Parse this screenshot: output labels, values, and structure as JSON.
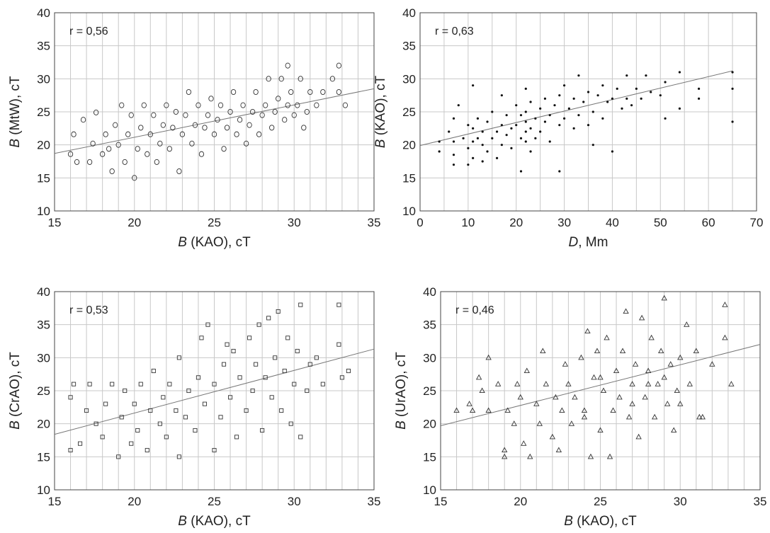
{
  "figure": {
    "background": "#ffffff",
    "grid_color": "#c8c8c8",
    "frame_color": "#444444",
    "marker_color": "#333333",
    "fit_line_color": "#777777"
  },
  "chart_data": [
    {
      "type": "scatter",
      "r_label": "r = 0,56",
      "xlabel": {
        "var": "B",
        "rest": " (KAO), cT"
      },
      "ylabel": {
        "var": "B",
        "rest": " (MtW), cT"
      },
      "xlim": [
        15,
        35
      ],
      "ylim": [
        10,
        40
      ],
      "xticks": [
        15,
        20,
        25,
        30,
        35
      ],
      "yticks": [
        10,
        15,
        20,
        25,
        30,
        35,
        40
      ],
      "grid": true,
      "marker": "circle",
      "fit_line": [
        [
          15,
          18.7
        ],
        [
          35,
          28.5
        ]
      ],
      "points_description": "dense cloud",
      "points": [
        [
          16.0,
          18.6
        ],
        [
          16.2,
          21.6
        ],
        [
          16.4,
          17.4
        ],
        [
          16.8,
          23.8
        ],
        [
          17.2,
          17.4
        ],
        [
          17.4,
          20.2
        ],
        [
          17.6,
          24.9
        ],
        [
          18.0,
          18.6
        ],
        [
          18.2,
          21.6
        ],
        [
          18.4,
          19.4
        ],
        [
          18.6,
          16.0
        ],
        [
          18.8,
          23.0
        ],
        [
          19.0,
          20.0
        ],
        [
          19.2,
          26.0
        ],
        [
          19.4,
          17.4
        ],
        [
          19.6,
          21.6
        ],
        [
          19.8,
          24.5
        ],
        [
          20.0,
          15.0
        ],
        [
          20.2,
          19.4
        ],
        [
          20.4,
          22.6
        ],
        [
          20.6,
          26.0
        ],
        [
          20.8,
          18.6
        ],
        [
          21.0,
          21.6
        ],
        [
          21.2,
          24.5
        ],
        [
          21.4,
          17.4
        ],
        [
          21.6,
          20.2
        ],
        [
          21.8,
          23.0
        ],
        [
          22.0,
          26.0
        ],
        [
          22.2,
          19.4
        ],
        [
          22.4,
          22.6
        ],
        [
          22.6,
          25.0
        ],
        [
          22.8,
          16.0
        ],
        [
          23.0,
          21.6
        ],
        [
          23.2,
          24.5
        ],
        [
          23.4,
          28.0
        ],
        [
          23.6,
          20.2
        ],
        [
          23.8,
          23.0
        ],
        [
          24.0,
          26.0
        ],
        [
          24.2,
          18.6
        ],
        [
          24.4,
          22.6
        ],
        [
          24.6,
          24.5
        ],
        [
          24.8,
          27.0
        ],
        [
          25.0,
          21.6
        ],
        [
          25.2,
          23.8
        ],
        [
          25.4,
          26.0
        ],
        [
          25.6,
          19.4
        ],
        [
          25.8,
          22.6
        ],
        [
          26.0,
          25.0
        ],
        [
          26.2,
          28.0
        ],
        [
          26.4,
          21.6
        ],
        [
          26.6,
          23.8
        ],
        [
          26.8,
          26.0
        ],
        [
          27.0,
          20.2
        ],
        [
          27.2,
          23.0
        ],
        [
          27.4,
          25.0
        ],
        [
          27.6,
          28.0
        ],
        [
          27.8,
          21.6
        ],
        [
          28.0,
          24.5
        ],
        [
          28.2,
          26.0
        ],
        [
          28.4,
          30.0
        ],
        [
          28.6,
          22.6
        ],
        [
          28.8,
          25.0
        ],
        [
          29.0,
          27.0
        ],
        [
          29.2,
          30.0
        ],
        [
          29.4,
          23.8
        ],
        [
          29.6,
          26.0
        ],
        [
          29.8,
          28.0
        ],
        [
          30.0,
          24.5
        ],
        [
          30.2,
          26.0
        ],
        [
          30.4,
          30.0
        ],
        [
          30.6,
          22.6
        ],
        [
          30.8,
          25.0
        ],
        [
          31.0,
          28.0
        ],
        [
          31.4,
          26.0
        ],
        [
          31.8,
          28.0
        ],
        [
          32.4,
          30.0
        ],
        [
          32.8,
          32.0
        ],
        [
          32.8,
          28.0
        ],
        [
          33.2,
          26.0
        ],
        [
          29.6,
          32.0
        ]
      ]
    },
    {
      "type": "scatter",
      "r_label": "r = 0,63",
      "xlabel": {
        "var": "D",
        "rest": ", Mm"
      },
      "ylabel": {
        "var": "B",
        "rest": " (KAO), cT"
      },
      "xlim": [
        0,
        70
      ],
      "ylim": [
        10,
        40
      ],
      "xticks": [
        0,
        10,
        20,
        30,
        40,
        50,
        60,
        70
      ],
      "yticks": [
        10,
        15,
        20,
        25,
        30,
        35,
        40
      ],
      "grid": true,
      "marker": "dot",
      "fit_line": [
        [
          0,
          19.9
        ],
        [
          65,
          31.2
        ]
      ],
      "points": [
        [
          4,
          19.0
        ],
        [
          4,
          20.5
        ],
        [
          6,
          22.0
        ],
        [
          7,
          17.0
        ],
        [
          7,
          18.5
        ],
        [
          7,
          20.5
        ],
        [
          7,
          24.0
        ],
        [
          8,
          26.0
        ],
        [
          9,
          21.0
        ],
        [
          10,
          17.0
        ],
        [
          10,
          19.5
        ],
        [
          10,
          23.0
        ],
        [
          11,
          18.0
        ],
        [
          11,
          20.5
        ],
        [
          11,
          22.5
        ],
        [
          11,
          29.0
        ],
        [
          12,
          21.0
        ],
        [
          12,
          24.0
        ],
        [
          13,
          17.5
        ],
        [
          13,
          20.0
        ],
        [
          13,
          22.0
        ],
        [
          14,
          19.0
        ],
        [
          14,
          23.5
        ],
        [
          15,
          21.0
        ],
        [
          15,
          25.0
        ],
        [
          16,
          18.0
        ],
        [
          16,
          22.0
        ],
        [
          17,
          20.0
        ],
        [
          17,
          23.0
        ],
        [
          17,
          27.5
        ],
        [
          18,
          21.5
        ],
        [
          18,
          24.5
        ],
        [
          19,
          19.5
        ],
        [
          19,
          22.5
        ],
        [
          20,
          23.0
        ],
        [
          20,
          26.0
        ],
        [
          21,
          16.0
        ],
        [
          21,
          21.0
        ],
        [
          21,
          24.5
        ],
        [
          22,
          20.5
        ],
        [
          22,
          22.0
        ],
        [
          22,
          23.5
        ],
        [
          22,
          25.0
        ],
        [
          22,
          28.5
        ],
        [
          23,
          19.0
        ],
        [
          23,
          22.5
        ],
        [
          23,
          26.5
        ],
        [
          24,
          21.0
        ],
        [
          24,
          24.0
        ],
        [
          25,
          22.0
        ],
        [
          25,
          25.5
        ],
        [
          26,
          23.5
        ],
        [
          26,
          27.0
        ],
        [
          27,
          20.5
        ],
        [
          27,
          24.5
        ],
        [
          28,
          26.0
        ],
        [
          29,
          23.0
        ],
        [
          29,
          27.5
        ],
        [
          29,
          16.0
        ],
        [
          30,
          24.0
        ],
        [
          30,
          29.0
        ],
        [
          31,
          25.5
        ],
        [
          32,
          22.5
        ],
        [
          32,
          27.0
        ],
        [
          33,
          24.5
        ],
        [
          33,
          30.5
        ],
        [
          34,
          26.5
        ],
        [
          35,
          23.0
        ],
        [
          35,
          28.0
        ],
        [
          36,
          25.0
        ],
        [
          36,
          20.0
        ],
        [
          37,
          27.5
        ],
        [
          38,
          24.0
        ],
        [
          38,
          29.0
        ],
        [
          39,
          26.5
        ],
        [
          40,
          19.0
        ],
        [
          40,
          27.0
        ],
        [
          41,
          28.5
        ],
        [
          42,
          25.5
        ],
        [
          43,
          30.5
        ],
        [
          43,
          27.0
        ],
        [
          44,
          26.0
        ],
        [
          45,
          28.5
        ],
        [
          46,
          27.0
        ],
        [
          47,
          30.5
        ],
        [
          48,
          28.0
        ],
        [
          50,
          27.5
        ],
        [
          51,
          24.0
        ],
        [
          51,
          29.5
        ],
        [
          54,
          25.5
        ],
        [
          54,
          31.0
        ],
        [
          58,
          27.0
        ],
        [
          58,
          28.5
        ],
        [
          65,
          23.5
        ],
        [
          65,
          28.5
        ],
        [
          65,
          31.0
        ]
      ]
    },
    {
      "type": "scatter",
      "r_label": "r = 0,53",
      "xlabel": {
        "var": "B",
        "rest": " (KAO), cT"
      },
      "ylabel": {
        "var": "B",
        "rest": " (CrAO), cT"
      },
      "xlim": [
        15,
        35
      ],
      "ylim": [
        10,
        40
      ],
      "xticks": [
        15,
        20,
        25,
        30,
        35
      ],
      "yticks": [
        10,
        15,
        20,
        25,
        30,
        35,
        40
      ],
      "grid": true,
      "marker": "square",
      "fit_line": [
        [
          15,
          18.4
        ],
        [
          35,
          31.3
        ]
      ],
      "points": [
        [
          16.0,
          16.0
        ],
        [
          16.0,
          24.0
        ],
        [
          16.2,
          26.0
        ],
        [
          16.6,
          17.0
        ],
        [
          17.0,
          22.0
        ],
        [
          17.2,
          26.0
        ],
        [
          17.6,
          20.0
        ],
        [
          18.0,
          18.0
        ],
        [
          18.2,
          23.0
        ],
        [
          18.6,
          26.0
        ],
        [
          19.0,
          15.0
        ],
        [
          19.2,
          21.0
        ],
        [
          19.4,
          25.0
        ],
        [
          19.8,
          17.0
        ],
        [
          20.0,
          23.0
        ],
        [
          20.2,
          19.0
        ],
        [
          20.4,
          26.0
        ],
        [
          20.8,
          16.0
        ],
        [
          21.0,
          22.0
        ],
        [
          21.2,
          28.0
        ],
        [
          21.6,
          20.0
        ],
        [
          21.8,
          24.0
        ],
        [
          22.0,
          18.0
        ],
        [
          22.2,
          26.0
        ],
        [
          22.6,
          22.0
        ],
        [
          22.8,
          15.0
        ],
        [
          22.8,
          30.0
        ],
        [
          23.2,
          21.0
        ],
        [
          23.4,
          25.0
        ],
        [
          23.8,
          19.0
        ],
        [
          24.0,
          27.0
        ],
        [
          24.2,
          33.0
        ],
        [
          24.4,
          23.0
        ],
        [
          24.6,
          35.0
        ],
        [
          25.0,
          16.0
        ],
        [
          25.0,
          26.0
        ],
        [
          25.4,
          21.0
        ],
        [
          25.6,
          29.0
        ],
        [
          26.0,
          24.0
        ],
        [
          26.2,
          31.0
        ],
        [
          26.4,
          18.0
        ],
        [
          26.6,
          27.0
        ],
        [
          27.0,
          22.0
        ],
        [
          27.2,
          33.0
        ],
        [
          27.4,
          25.0
        ],
        [
          27.6,
          29.0
        ],
        [
          28.0,
          19.0
        ],
        [
          28.2,
          27.0
        ],
        [
          28.4,
          36.0
        ],
        [
          28.6,
          24.0
        ],
        [
          28.8,
          30.0
        ],
        [
          29.0,
          37.0
        ],
        [
          29.2,
          22.0
        ],
        [
          29.4,
          28.0
        ],
        [
          29.6,
          33.0
        ],
        [
          29.8,
          20.0
        ],
        [
          30.0,
          26.0
        ],
        [
          30.2,
          31.0
        ],
        [
          30.4,
          18.0
        ],
        [
          30.4,
          38.0
        ],
        [
          30.8,
          25.0
        ],
        [
          31.0,
          29.0
        ],
        [
          31.4,
          30.0
        ],
        [
          31.8,
          26.0
        ],
        [
          32.8,
          38.0
        ],
        [
          32.8,
          32.0
        ],
        [
          33.0,
          27.0
        ],
        [
          33.4,
          28.0
        ],
        [
          27.8,
          35.0
        ],
        [
          25.8,
          32.0
        ]
      ]
    },
    {
      "type": "scatter",
      "r_label": "r = 0,46",
      "xlabel": {
        "var": "B",
        "rest": " (KAO), cT"
      },
      "ylabel": {
        "var": "B",
        "rest": " (UrAO), cT"
      },
      "xlim": [
        15,
        35
      ],
      "ylim": [
        10,
        40
      ],
      "xticks": [
        15,
        20,
        25,
        30,
        35
      ],
      "yticks": [
        10,
        15,
        20,
        25,
        30,
        35,
        40
      ],
      "grid": true,
      "marker": "triangle",
      "fit_line": [
        [
          15,
          19.7
        ],
        [
          35,
          32.0
        ]
      ],
      "points": [
        [
          16.0,
          22.0
        ],
        [
          16.8,
          23.0
        ],
        [
          17.0,
          22.0
        ],
        [
          17.4,
          27.0
        ],
        [
          17.6,
          25.0
        ],
        [
          18.0,
          30.0
        ],
        [
          18.0,
          22.0
        ],
        [
          18.6,
          26.0
        ],
        [
          19.0,
          16.0
        ],
        [
          19.0,
          15.0
        ],
        [
          19.2,
          22.0
        ],
        [
          19.6,
          20.0
        ],
        [
          19.8,
          26.0
        ],
        [
          20.0,
          24.0
        ],
        [
          20.2,
          17.0
        ],
        [
          20.4,
          28.0
        ],
        [
          20.6,
          15.0
        ],
        [
          21.0,
          23.0
        ],
        [
          21.2,
          20.0
        ],
        [
          21.4,
          31.0
        ],
        [
          21.6,
          26.0
        ],
        [
          22.0,
          18.0
        ],
        [
          22.2,
          24.0
        ],
        [
          22.4,
          16.0
        ],
        [
          22.6,
          22.0
        ],
        [
          22.8,
          29.0
        ],
        [
          23.0,
          26.0
        ],
        [
          23.2,
          20.0
        ],
        [
          23.4,
          24.0
        ],
        [
          23.8,
          30.0
        ],
        [
          24.0,
          22.0
        ],
        [
          24.2,
          34.0
        ],
        [
          24.4,
          15.0
        ],
        [
          24.6,
          27.0
        ],
        [
          24.8,
          31.0
        ],
        [
          25.0,
          19.0
        ],
        [
          25.2,
          25.0
        ],
        [
          25.4,
          33.0
        ],
        [
          25.6,
          15.0
        ],
        [
          25.8,
          22.0
        ],
        [
          26.0,
          28.0
        ],
        [
          26.2,
          24.0
        ],
        [
          26.4,
          31.0
        ],
        [
          26.6,
          37.0
        ],
        [
          26.8,
          21.0
        ],
        [
          27.0,
          26.0
        ],
        [
          27.2,
          29.0
        ],
        [
          27.4,
          18.0
        ],
        [
          27.6,
          36.0
        ],
        [
          27.8,
          24.0
        ],
        [
          28.0,
          28.0
        ],
        [
          28.2,
          33.0
        ],
        [
          28.4,
          21.0
        ],
        [
          28.6,
          26.0
        ],
        [
          28.8,
          31.0
        ],
        [
          29.0,
          39.0
        ],
        [
          29.2,
          23.0
        ],
        [
          29.4,
          29.0
        ],
        [
          29.6,
          19.0
        ],
        [
          29.8,
          25.0
        ],
        [
          30.0,
          30.0
        ],
        [
          30.4,
          35.0
        ],
        [
          30.6,
          26.0
        ],
        [
          31.0,
          31.0
        ],
        [
          31.2,
          21.0
        ],
        [
          31.4,
          21.0
        ],
        [
          32.0,
          29.0
        ],
        [
          32.8,
          38.0
        ],
        [
          32.8,
          33.0
        ],
        [
          33.2,
          26.0
        ],
        [
          28.0,
          26.0
        ],
        [
          27.0,
          23.0
        ],
        [
          25.0,
          27.0
        ],
        [
          24.0,
          21.0
        ],
        [
          30.0,
          23.0
        ],
        [
          29.0,
          27.0
        ]
      ]
    }
  ]
}
